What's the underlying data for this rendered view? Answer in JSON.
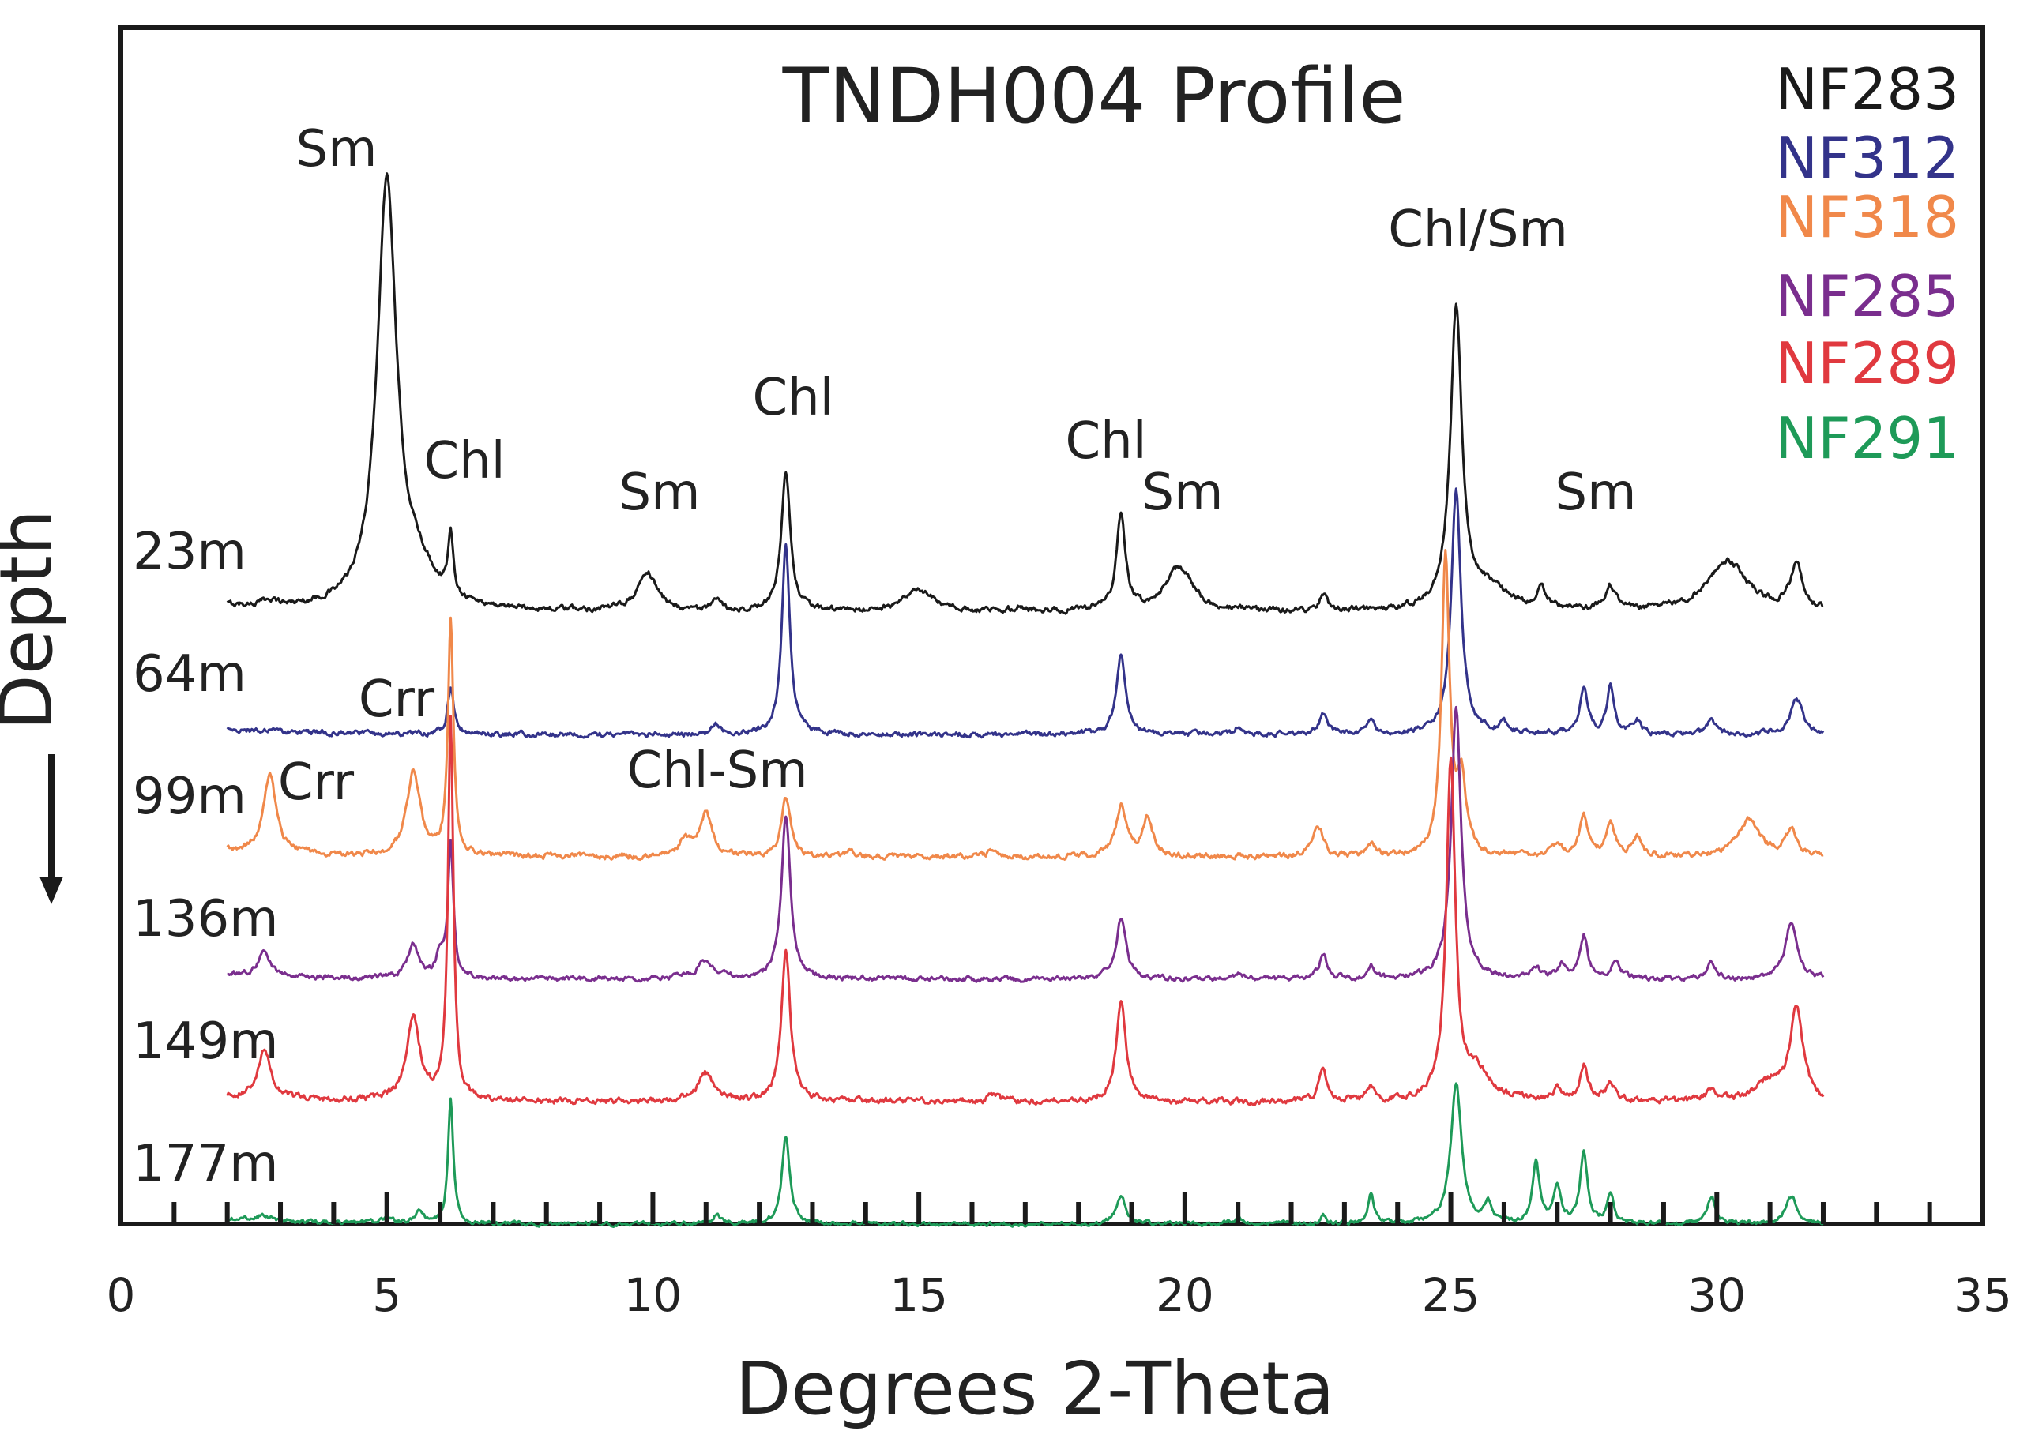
{
  "chart_data": {
    "type": "line",
    "title": "TNDH004 Profile",
    "xlabel": "Degrees 2-Theta",
    "ylabel": "Depth",
    "xlim": [
      0,
      35
    ],
    "x_ticks": [
      "0",
      "5",
      "10",
      "15",
      "20",
      "25",
      "30",
      "35"
    ],
    "x_minor_step": 1,
    "legend_position": "top-right",
    "grid": false,
    "series": [
      {
        "name": "NF283",
        "depth_label": "23m",
        "color": "#1a1a1a",
        "offset": 5,
        "noise": 0.1,
        "peaks": [
          [
            2.8,
            0.35,
            0.15
          ],
          [
            5.0,
            23.5,
            0.22
          ],
          [
            5.6,
            1.6,
            0.4
          ],
          [
            6.2,
            3.2,
            0.06
          ],
          [
            9.9,
            2.1,
            0.22
          ],
          [
            11.2,
            0.5,
            0.1
          ],
          [
            12.5,
            7.6,
            0.1
          ],
          [
            15.0,
            1.2,
            0.3
          ],
          [
            16.9,
            0.25,
            0.1
          ],
          [
            18.8,
            5.3,
            0.1
          ],
          [
            19.9,
            2.4,
            0.3
          ],
          [
            22.6,
            1.0,
            0.08
          ],
          [
            25.1,
            16.5,
            0.13
          ],
          [
            25.7,
            1.2,
            0.4
          ],
          [
            26.7,
            1.1,
            0.12
          ],
          [
            28.0,
            1.3,
            0.12
          ],
          [
            30.2,
            2.8,
            0.45
          ],
          [
            31.5,
            2.5,
            0.13
          ]
        ]
      },
      {
        "name": "NF312",
        "depth_label": "64m",
        "color": "#33338a",
        "offset": 4,
        "noise": 0.09,
        "peaks": [
          [
            6.2,
            2.5,
            0.07
          ],
          [
            11.2,
            0.5,
            0.1
          ],
          [
            12.5,
            10.5,
            0.09
          ],
          [
            18.8,
            4.5,
            0.1
          ],
          [
            21.0,
            0.4,
            0.1
          ],
          [
            22.6,
            1.2,
            0.08
          ],
          [
            23.5,
            0.7,
            0.08
          ],
          [
            25.1,
            13.5,
            0.11
          ],
          [
            26.0,
            0.5,
            0.1
          ],
          [
            27.5,
            2.4,
            0.09
          ],
          [
            28.0,
            2.7,
            0.08
          ],
          [
            28.5,
            0.8,
            0.08
          ],
          [
            29.9,
            0.7,
            0.1
          ],
          [
            31.5,
            2.0,
            0.13
          ]
        ]
      },
      {
        "name": "NF318",
        "depth_label": "99m",
        "color": "#f0884a",
        "offset": 3,
        "noise": 0.1,
        "peaks": [
          [
            2.8,
            4.4,
            0.14
          ],
          [
            5.5,
            4.6,
            0.15
          ],
          [
            6.2,
            13.0,
            0.06
          ],
          [
            10.6,
            0.8,
            0.15
          ],
          [
            11.0,
            2.3,
            0.14
          ],
          [
            12.5,
            3.3,
            0.1
          ],
          [
            13.7,
            0.35,
            0.1
          ],
          [
            16.4,
            0.4,
            0.1
          ],
          [
            18.8,
            2.7,
            0.12
          ],
          [
            19.3,
            2.0,
            0.12
          ],
          [
            22.5,
            1.7,
            0.12
          ],
          [
            23.5,
            0.6,
            0.1
          ],
          [
            24.9,
            16.5,
            0.09
          ],
          [
            25.2,
            4.0,
            0.1
          ],
          [
            27.0,
            0.6,
            0.1
          ],
          [
            27.5,
            2.2,
            0.1
          ],
          [
            28.0,
            1.8,
            0.1
          ],
          [
            28.5,
            1.0,
            0.1
          ],
          [
            30.6,
            2.0,
            0.25
          ],
          [
            31.4,
            1.4,
            0.13
          ]
        ]
      },
      {
        "name": "NF285",
        "depth_label": "136m",
        "color": "#7a2e8e",
        "offset": 2,
        "noise": 0.09,
        "peaks": [
          [
            2.7,
            1.5,
            0.12
          ],
          [
            5.5,
            1.8,
            0.13
          ],
          [
            6.0,
            1.3,
            0.08
          ],
          [
            6.2,
            7.5,
            0.06
          ],
          [
            11.0,
            1.0,
            0.2
          ],
          [
            12.5,
            9.1,
            0.1
          ],
          [
            18.8,
            3.4,
            0.11
          ],
          [
            21.0,
            0.3,
            0.1
          ],
          [
            22.6,
            1.3,
            0.09
          ],
          [
            23.5,
            0.8,
            0.08
          ],
          [
            25.1,
            15.0,
            0.11
          ],
          [
            26.6,
            0.6,
            0.1
          ],
          [
            27.1,
            0.7,
            0.1
          ],
          [
            27.5,
            2.4,
            0.09
          ],
          [
            28.1,
            1.0,
            0.1
          ],
          [
            29.9,
            0.8,
            0.1
          ],
          [
            31.4,
            3.2,
            0.13
          ]
        ]
      },
      {
        "name": "NF289",
        "depth_label": "149m",
        "color": "#e0393f",
        "offset": 1,
        "noise": 0.11,
        "peaks": [
          [
            2.7,
            2.6,
            0.14
          ],
          [
            5.5,
            4.5,
            0.15
          ],
          [
            6.2,
            21.0,
            0.06
          ],
          [
            11.0,
            1.5,
            0.18
          ],
          [
            12.5,
            8.3,
            0.1
          ],
          [
            16.4,
            0.4,
            0.1
          ],
          [
            18.8,
            5.4,
            0.11
          ],
          [
            22.6,
            1.6,
            0.09
          ],
          [
            23.5,
            0.8,
            0.08
          ],
          [
            25.0,
            18.5,
            0.1
          ],
          [
            25.5,
            1.5,
            0.3
          ],
          [
            27.0,
            0.6,
            0.1
          ],
          [
            27.5,
            2.0,
            0.09
          ],
          [
            28.0,
            1.0,
            0.1
          ],
          [
            29.9,
            0.7,
            0.1
          ],
          [
            31.0,
            1.0,
            0.3
          ],
          [
            31.5,
            5.0,
            0.14
          ]
        ]
      },
      {
        "name": "NF291",
        "depth_label": "177m",
        "color": "#1e9a58",
        "offset": 0,
        "noise": 0.07,
        "peaks": [
          [
            2.7,
            0.3,
            0.15
          ],
          [
            5.0,
            0.3,
            0.1
          ],
          [
            5.6,
            0.6,
            0.1
          ],
          [
            6.2,
            6.8,
            0.06
          ],
          [
            11.2,
            0.5,
            0.1
          ],
          [
            12.5,
            4.8,
            0.09
          ],
          [
            18.8,
            1.5,
            0.11
          ],
          [
            21.0,
            0.4,
            0.1
          ],
          [
            22.6,
            0.4,
            0.08
          ],
          [
            23.5,
            1.6,
            0.07
          ],
          [
            25.1,
            7.8,
            0.12
          ],
          [
            25.7,
            1.0,
            0.08
          ],
          [
            26.6,
            3.3,
            0.08
          ],
          [
            27.0,
            2.0,
            0.08
          ],
          [
            27.5,
            4.0,
            0.08
          ],
          [
            28.0,
            1.5,
            0.08
          ],
          [
            29.9,
            1.5,
            0.09
          ],
          [
            31.4,
            1.5,
            0.13
          ]
        ]
      }
    ],
    "annotations": [
      {
        "text": "Sm",
        "x": 4.3
      },
      {
        "text": "Chl",
        "x": 6.5
      },
      {
        "text": "Sm",
        "x": 10.0
      },
      {
        "text": "Chl",
        "x": 12.5
      },
      {
        "text": "Chl",
        "x": 18.3
      },
      {
        "text": "Sm",
        "x": 19.9
      },
      {
        "text": "Chl/Sm",
        "x": 25.3
      },
      {
        "text": "Sm",
        "x": 27.7
      },
      {
        "text": "Crr",
        "x": 5.3
      },
      {
        "text": "Crr",
        "x": 3.6
      },
      {
        "text": "Chl-Sm",
        "x": 11.3
      }
    ]
  }
}
